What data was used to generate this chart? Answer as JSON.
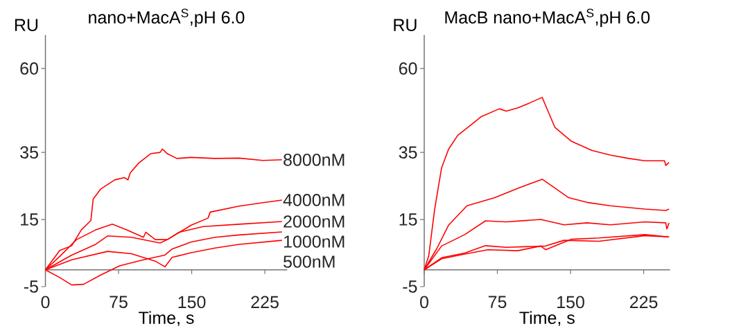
{
  "chart_data": [
    {
      "type": "line",
      "title": "nano+MacA$^{S}$,pH 6.0",
      "xlabel": "Time, s",
      "ylabel": "RU",
      "xlim": [
        0,
        248
      ],
      "xticks": [
        0,
        75,
        150,
        225
      ],
      "ylim": [
        -5,
        70
      ],
      "yticks": [
        -5,
        15,
        35,
        60
      ],
      "series": [
        {
          "name": "8000nM",
          "color": "#ff0000",
          "x": [
            0,
            14.7,
            27,
            36.8,
            46.6,
            49,
            56.4,
            71,
            81,
            84.6,
            87,
            95.6,
            107.8,
            117.6,
            120,
            125,
            134.8,
            149.5,
            174,
            198.5,
            223,
            242.6
          ],
          "values": [
            0,
            5.8,
            7.2,
            11.9,
            14.7,
            21.1,
            24,
            26.8,
            27.5,
            26.8,
            28.9,
            31.8,
            34.6,
            35,
            36,
            34.6,
            33.2,
            33.5,
            33.2,
            33.3,
            32.6,
            32.8
          ]
        },
        {
          "name": "4000nM",
          "color": "#ff0000",
          "x": [
            0,
            14.7,
            31.9,
            51.5,
            68.6,
            83.3,
            100.5,
            102.9,
            112.7,
            125,
            149.5,
            166.7,
            169,
            198.5,
            223,
            242.6
          ],
          "values": [
            0,
            4,
            9,
            11.9,
            13.6,
            11.9,
            9.7,
            11.2,
            9,
            9,
            13.3,
            15.4,
            17.2,
            19,
            20,
            20.8
          ]
        },
        {
          "name": "2000nM",
          "color": "#ff0000",
          "x": [
            0,
            27,
            51.5,
            63.7,
            88.2,
            117.6,
            125,
            137,
            161.8,
            198.5,
            242.6
          ],
          "values": [
            0,
            4.4,
            7.6,
            10.1,
            9.7,
            8,
            9,
            11.2,
            12.9,
            13.6,
            14.4
          ]
        },
        {
          "name": "1000nM",
          "color": "#ff0000",
          "x": [
            0,
            14.7,
            27,
            39.2,
            56.4,
            76,
            100.5,
            122.5,
            129.9,
            149.5,
            174,
            198.5,
            242.6
          ],
          "values": [
            0,
            -2.3,
            -4.5,
            -4.3,
            -1.6,
            1.2,
            3,
            4.4,
            6.2,
            8.3,
            9.7,
            10.4,
            11.3
          ]
        },
        {
          "name": "500nM",
          "color": "#ff0000",
          "x": [
            0,
            27,
            63.7,
            88.2,
            112.7,
            122.5,
            129.9,
            149.5,
            174,
            198.5,
            242.6
          ],
          "values": [
            0,
            3,
            5.5,
            4.8,
            2.6,
            0.9,
            3.7,
            5.1,
            6.5,
            7.6,
            8.8
          ]
        }
      ]
    },
    {
      "type": "line",
      "title": "MacB nano+MacA$^{S}$,pH 6.0",
      "xlabel": "Time, s",
      "ylabel": "RU",
      "xlim": [
        0,
        252
      ],
      "xticks": [
        0,
        75,
        150,
        225
      ],
      "ylim": [
        -5,
        70
      ],
      "yticks": [
        -5,
        15,
        35,
        60
      ],
      "series": [
        {
          "color": "#ff0000",
          "x": [
            0,
            4.7,
            10.7,
            17.8,
            24.9,
            34.4,
            46.2,
            58.1,
            77,
            84.1,
            96,
            107.8,
            120.9,
            124.4,
            133.9,
            150.5,
            171.8,
            190.8,
            209.7,
            226.3,
            246.4,
            247.6,
            251
          ],
          "values": [
            0,
            4.3,
            18.1,
            30.4,
            35.9,
            40.1,
            42.8,
            45.6,
            48,
            47.3,
            48.3,
            49.7,
            51.4,
            49,
            42.5,
            38.4,
            35.6,
            34.2,
            33.2,
            32.5,
            32.5,
            31.1,
            32
          ]
        },
        {
          "color": "#ff0000",
          "x": [
            0,
            13,
            24.9,
            43.8,
            72.3,
            96,
            120.9,
            131.5,
            148.1,
            167,
            190.8,
            226.3,
            247.6,
            251
          ],
          "values": [
            0,
            6.4,
            13.3,
            19.1,
            21.5,
            24.3,
            27,
            24.9,
            21.5,
            20.1,
            19.1,
            18.1,
            17.7,
            18.1
          ]
        },
        {
          "color": "#ff0000",
          "x": [
            0,
            17.8,
            41.5,
            62.8,
            84.1,
            119.4,
            143.4,
            167,
            190.8,
            226.3,
            247.6,
            248.8,
            251
          ],
          "values": [
            0,
            7.1,
            10.5,
            14.6,
            14.3,
            15,
            13.4,
            14,
            13.4,
            14.3,
            14,
            12.2,
            14
          ]
        },
        {
          "color": "#ff0000",
          "x": [
            0,
            17.8,
            41.5,
            62.8,
            84.1,
            124.4,
            143.4,
            178.9,
            226.3,
            251
          ],
          "values": [
            0,
            3.6,
            5,
            7.2,
            6.7,
            7.1,
            8.8,
            8.5,
            10.2,
            9.8
          ]
        },
        {
          "color": "#ff0000",
          "x": [
            0,
            17.8,
            41.5,
            65.2,
            96,
            119.4,
            124.4,
            150.5,
            178.9,
            226.3,
            251
          ],
          "values": [
            0,
            3.3,
            4.7,
            6,
            5.7,
            7.1,
            6,
            9.1,
            9.5,
            10.5,
            9.8
          ]
        }
      ]
    }
  ]
}
